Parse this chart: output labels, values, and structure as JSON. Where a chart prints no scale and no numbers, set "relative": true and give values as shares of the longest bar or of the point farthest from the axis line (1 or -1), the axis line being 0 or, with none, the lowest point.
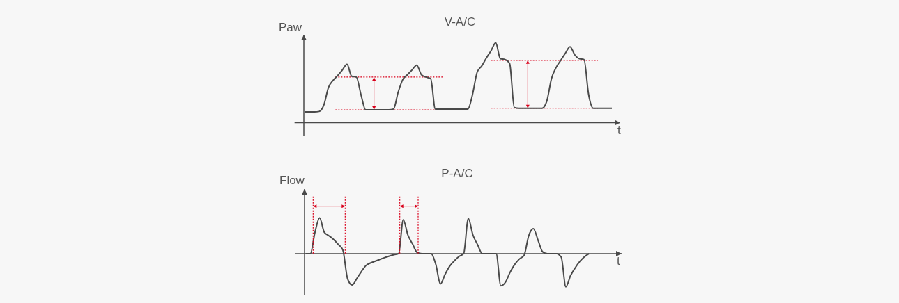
{
  "chart_data": [
    {
      "type": "line",
      "title": "V-A/C",
      "xlabel": "t",
      "ylabel": "Paw",
      "relative": true,
      "color": "#4a4a4a",
      "categories": [
        null,
        null,
        null,
        null,
        null,
        null,
        null,
        null,
        null,
        null,
        null,
        null,
        null,
        null,
        null,
        null,
        null,
        null,
        null,
        null,
        null,
        null,
        null,
        null,
        null,
        null,
        null,
        null,
        null,
        null,
        null,
        null,
        null,
        null,
        null,
        null,
        null,
        null,
        null,
        null,
        null,
        null,
        null,
        null,
        null,
        null,
        null,
        null,
        null,
        null,
        null,
        null,
        null,
        null,
        null,
        null,
        null,
        null,
        null,
        null,
        null,
        null,
        null,
        null,
        null,
        null,
        null
      ],
      "values": [
        0.135,
        0.135,
        0.135,
        0.14,
        0.22,
        0.44,
        0.53,
        0.59,
        0.66,
        0.73,
        0.58,
        0.57,
        0.35,
        0.16,
        0.16,
        0.16,
        0.16,
        0.16,
        0.16,
        0.17,
        0.38,
        0.54,
        0.6,
        0.66,
        0.72,
        0.6,
        0.57,
        0.55,
        0.17,
        0.17,
        0.17,
        0.17,
        0.17,
        0.17,
        0.17,
        0.17,
        0.35,
        0.63,
        0.71,
        0.81,
        0.9,
        1,
        0.8,
        0.79,
        0.74,
        0.19,
        0.18,
        0.18,
        0.18,
        0.18,
        0.18,
        0.18,
        0.27,
        0.55,
        0.69,
        0.78,
        0.87,
        0.95,
        0.85,
        0.8,
        0.79,
        0.35,
        0.18,
        0.18,
        0.18,
        0.18,
        0.18
      ],
      "ref_lines": [
        {
          "axis": "y",
          "value": 0.57,
          "color": "#d9001b",
          "line_style": "dotted"
        },
        {
          "axis": "y",
          "value": 0.16,
          "color": "#d9001b",
          "line_style": "dotted"
        },
        {
          "axis": "y",
          "value": 0.78,
          "color": "#d9001b",
          "line_style": "dotted"
        },
        {
          "axis": "y",
          "value": 0.18,
          "color": "#d9001b",
          "line_style": "dotted"
        }
      ]
    },
    {
      "type": "line",
      "title": "P-A/C",
      "xlabel": "t",
      "ylabel": "Flow",
      "relative": true,
      "color": "#4a4a4a",
      "categories": [
        null,
        null,
        null,
        null,
        null,
        null,
        null,
        null,
        null,
        null,
        null,
        null,
        null,
        null,
        null,
        null,
        null,
        null,
        null,
        null,
        null,
        null,
        null,
        null,
        null,
        null,
        null,
        null,
        null,
        null,
        null,
        null,
        null,
        null,
        null,
        null,
        null,
        null,
        null,
        null,
        null,
        null,
        null,
        null,
        null,
        null,
        null,
        null,
        null,
        null,
        null,
        null,
        null,
        null,
        null,
        null,
        null,
        null,
        null,
        null,
        null,
        null
      ],
      "values": [
        0,
        0,
        0.6,
        1,
        0.6,
        0.5,
        0.4,
        0.26,
        0.1,
        -0.7,
        -0.88,
        -0.7,
        -0.5,
        -0.33,
        -0.26,
        -0.21,
        -0.16,
        -0.11,
        -0.07,
        -0.03,
        0,
        0.95,
        0.52,
        0.27,
        0.03,
        0,
        0,
        0,
        -0.3,
        -0.85,
        -0.58,
        -0.35,
        -0.2,
        -0.08,
        0,
        0.98,
        0.52,
        0.25,
        0,
        0,
        0,
        0,
        -0.9,
        -0.8,
        -0.52,
        -0.3,
        -0.15,
        -0.05,
        0.5,
        0.7,
        0.38,
        0.05,
        0,
        0,
        0,
        -0.1,
        -0.93,
        -0.62,
        -0.4,
        -0.22,
        -0.09,
        0
      ]
    }
  ]
}
